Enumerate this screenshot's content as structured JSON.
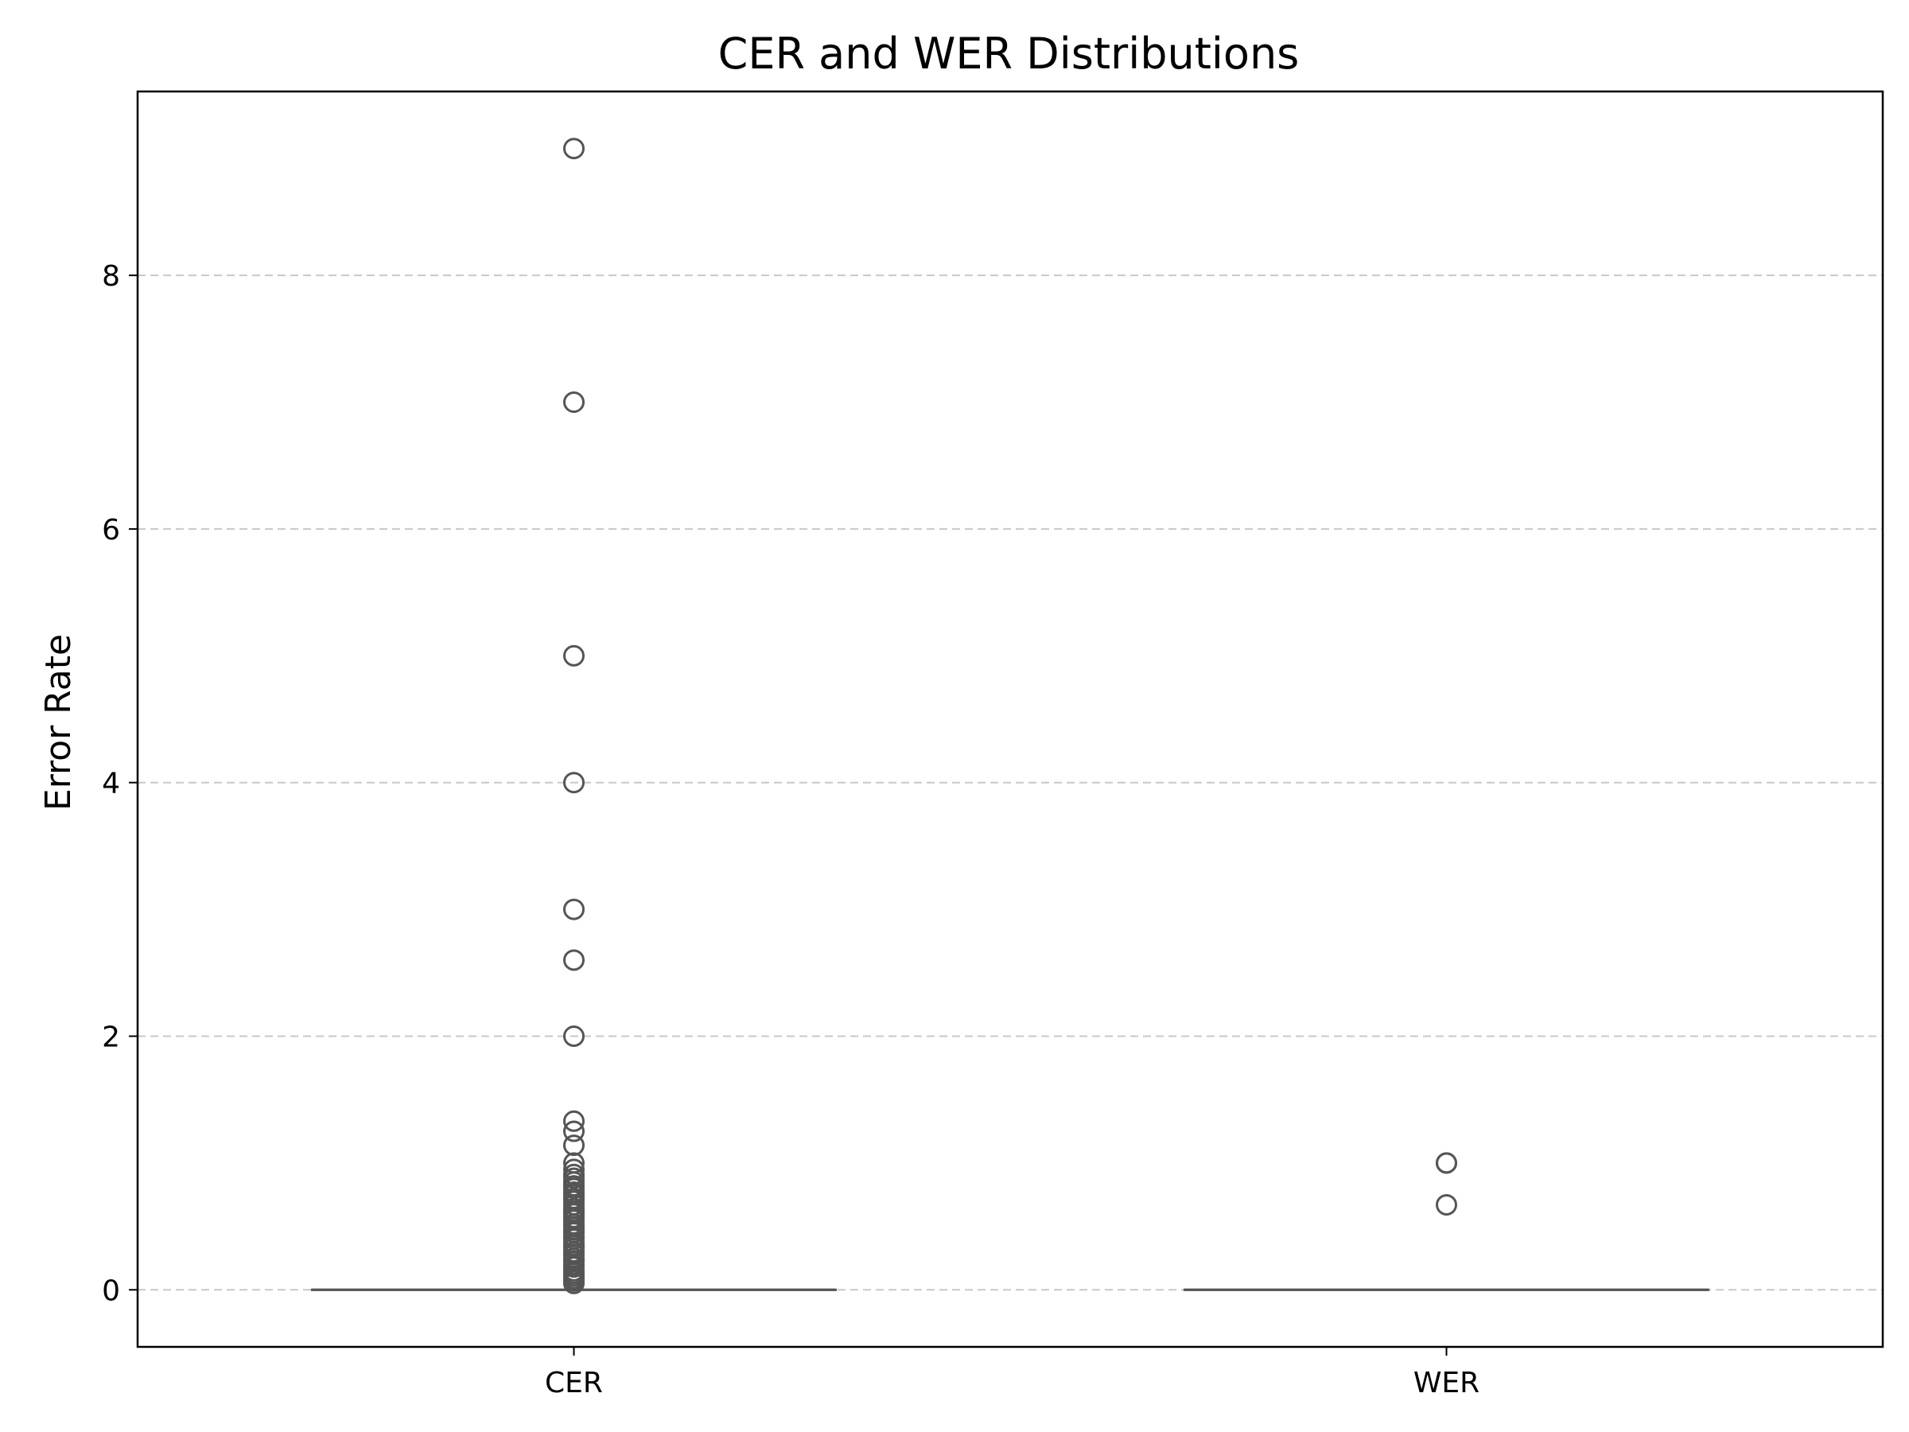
{
  "chart_data": {
    "type": "box",
    "title": "CER and WER Distributions",
    "xlabel": "",
    "ylabel": "Error Rate",
    "categories": [
      "CER",
      "WER"
    ],
    "ylim": [
      -0.45,
      9.45
    ],
    "yticks": [
      0,
      2,
      4,
      6,
      8
    ],
    "grid": "y, dashed",
    "boxes": [
      {
        "category": "CER",
        "q1": 0,
        "median": 0,
        "q3": 0,
        "whisker_low": 0,
        "whisker_high": 0,
        "outliers": [
          9.0,
          7.0,
          5.0,
          4.0,
          3.0,
          2.6,
          2.0,
          1.33,
          1.25,
          1.14,
          1.0,
          0.95,
          0.91,
          0.88,
          0.85,
          0.82,
          0.8,
          0.77,
          0.75,
          0.72,
          0.7,
          0.67,
          0.64,
          0.62,
          0.6,
          0.57,
          0.55,
          0.52,
          0.5,
          0.47,
          0.45,
          0.42,
          0.4,
          0.37,
          0.35,
          0.33,
          0.3,
          0.28,
          0.25,
          0.23,
          0.2,
          0.18,
          0.15,
          0.13,
          0.11,
          0.09,
          0.07,
          0.05
        ]
      },
      {
        "category": "WER",
        "q1": 0,
        "median": 0,
        "q3": 0,
        "whisker_low": 0,
        "whisker_high": 0,
        "outliers": [
          1.0,
          1.0,
          0.67
        ]
      }
    ],
    "colors": {
      "box": "#555555",
      "grid": "#c8c8c8"
    }
  }
}
